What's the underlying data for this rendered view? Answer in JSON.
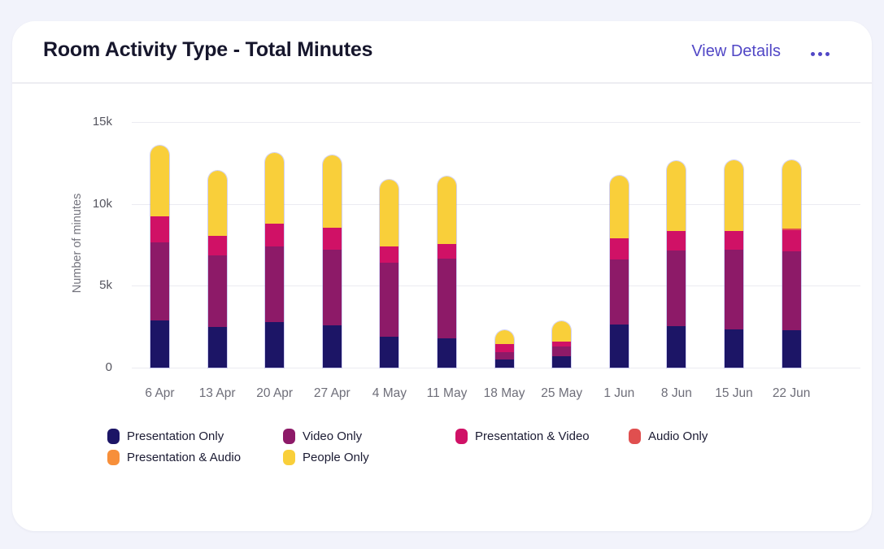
{
  "header": {
    "title": "Room Activity Type - Total Minutes",
    "view_details_label": "View Details",
    "menu_icon": "ellipsis-icon"
  },
  "colors": {
    "accent_link": "#5147c6",
    "card_background": "#ffffff",
    "page_background": "#f2f3fb",
    "gridline": "#ebebf1"
  },
  "chart_data": {
    "type": "bar",
    "stacked": true,
    "title": "Room Activity Type - Total Minutes",
    "xlabel": "",
    "ylabel": "Number of minutes",
    "ylim": [
      0,
      15000
    ],
    "grid": true,
    "legend_position": "bottom",
    "yticks": [
      {
        "label": "0",
        "value": 0
      },
      {
        "label": "5k",
        "value": 5000
      },
      {
        "label": "10k",
        "value": 10000
      },
      {
        "label": "15k",
        "value": 15000
      }
    ],
    "categories": [
      "6 Apr",
      "13 Apr",
      "20 Apr",
      "27 Apr",
      "4 May",
      "11 May",
      "18 May",
      "25 May",
      "1 Jun",
      "8 Jun",
      "15 Jun",
      "22 Jun"
    ],
    "series": [
      {
        "name": "Presentation Only",
        "color": "#1c1566",
        "values": [
          2900,
          2500,
          2800,
          2600,
          1900,
          1800,
          500,
          700,
          2650,
          2550,
          2350,
          2300
        ]
      },
      {
        "name": "Video Only",
        "color": "#8d1a68",
        "values": [
          4750,
          4350,
          4600,
          4600,
          4500,
          4850,
          450,
          600,
          3950,
          4600,
          4850,
          4800
        ]
      },
      {
        "name": "Presentation & Video",
        "color": "#d01166",
        "values": [
          1600,
          1200,
          1400,
          1350,
          1000,
          900,
          500,
          300,
          1300,
          1200,
          1150,
          1300
        ]
      },
      {
        "name": "Audio Only",
        "color": "#e04f4f",
        "values": [
          0,
          0,
          0,
          0,
          0,
          0,
          0,
          0,
          0,
          0,
          0,
          100
        ]
      },
      {
        "name": "Presentation & Audio",
        "color": "#f78f3a",
        "values": [
          0,
          0,
          0,
          0,
          0,
          0,
          0,
          0,
          0,
          0,
          0,
          0
        ]
      },
      {
        "name": "People Only",
        "color": "#f9cf3a",
        "values": [
          4300,
          3950,
          4300,
          4400,
          4050,
          4100,
          850,
          1250,
          3800,
          4250,
          4300,
          4150
        ]
      }
    ],
    "totals": [
      13550,
      12000,
      13100,
      12950,
      11450,
      11650,
      2300,
      2850,
      11700,
      12600,
      12650,
      12650
    ]
  }
}
